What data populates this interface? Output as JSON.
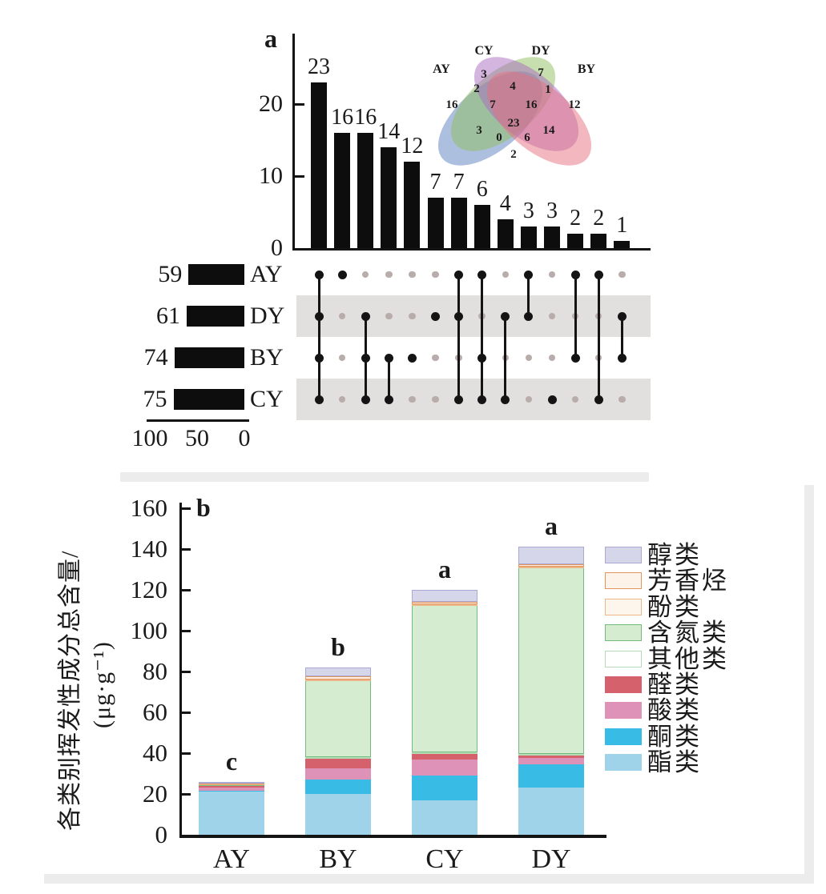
{
  "chart_data": [
    {
      "id": "upset",
      "type": "bar",
      "panel_label": "a",
      "yticks": [
        0,
        10,
        20
      ],
      "set_size_axis_ticks": [
        100,
        50,
        0
      ],
      "row_order": [
        "AY",
        "DY",
        "BY",
        "CY"
      ],
      "set_sizes": {
        "AY": 59,
        "DY": 61,
        "BY": 74,
        "CY": 75
      },
      "intersections": [
        {
          "sets": [
            "AY",
            "DY",
            "BY",
            "CY"
          ],
          "size": 23
        },
        {
          "sets": [
            "AY"
          ],
          "size": 16
        },
        {
          "sets": [
            "DY",
            "BY",
            "CY"
          ],
          "size": 16
        },
        {
          "sets": [
            "BY",
            "CY"
          ],
          "size": 14
        },
        {
          "sets": [
            "BY"
          ],
          "size": 12
        },
        {
          "sets": [
            "DY"
          ],
          "size": 7
        },
        {
          "sets": [
            "AY",
            "DY",
            "CY"
          ],
          "size": 7
        },
        {
          "sets": [
            "AY",
            "BY",
            "CY"
          ],
          "size": 6
        },
        {
          "sets": [
            "DY",
            "CY"
          ],
          "size": 4
        },
        {
          "sets": [
            "AY",
            "DY"
          ],
          "size": 3
        },
        {
          "sets": [
            "CY"
          ],
          "size": 3
        },
        {
          "sets": [
            "AY",
            "BY"
          ],
          "size": 2
        },
        {
          "sets": [
            "AY",
            "CY"
          ],
          "size": 2
        },
        {
          "sets": [
            "DY",
            "BY"
          ],
          "size": 1
        }
      ]
    },
    {
      "id": "venn",
      "type": "venn",
      "sets": [
        "AY",
        "CY",
        "DY",
        "BY"
      ],
      "set_colors": {
        "AY": "#5b7fbe",
        "CY": "#8fbf5e",
        "DY": "#a86bbf",
        "BY": "#e8707f"
      },
      "regions": [
        {
          "sets": [
            "AY"
          ],
          "value": 16
        },
        {
          "sets": [
            "CY"
          ],
          "value": 3
        },
        {
          "sets": [
            "DY"
          ],
          "value": 7
        },
        {
          "sets": [
            "BY"
          ],
          "value": 12
        },
        {
          "sets": [
            "AY",
            "CY"
          ],
          "value": 2
        },
        {
          "sets": [
            "CY",
            "DY"
          ],
          "value": 4
        },
        {
          "sets": [
            "DY",
            "BY"
          ],
          "value": 1
        },
        {
          "sets": [
            "AY",
            "CY",
            "DY"
          ],
          "value": 7
        },
        {
          "sets": [
            "CY",
            "DY",
            "BY"
          ],
          "value": 16
        },
        {
          "sets": [
            "AY",
            "CY",
            "DY",
            "BY"
          ],
          "value": 23
        },
        {
          "sets": [
            "AY",
            "DY"
          ],
          "value": 3
        },
        {
          "sets": [
            "AY",
            "DY",
            "BY"
          ],
          "value": 0
        },
        {
          "sets": [
            "AY",
            "CY",
            "BY"
          ],
          "value": 6
        },
        {
          "sets": [
            "CY",
            "BY"
          ],
          "value": 14
        },
        {
          "sets": [
            "AY",
            "BY"
          ],
          "value": 2
        }
      ]
    },
    {
      "id": "stacked",
      "type": "bar",
      "stacked": true,
      "panel_label": "b",
      "categories": [
        "AY",
        "BY",
        "CY",
        "DY"
      ],
      "sig_letters": [
        "c",
        "b",
        "a",
        "a"
      ],
      "ylabel_line1": "各类别挥发性成分总含量/",
      "ylabel_line2": "(μg·g⁻¹)",
      "ylim": [
        0,
        160
      ],
      "yticks": [
        0,
        20,
        40,
        60,
        80,
        100,
        120,
        140,
        160
      ],
      "series": [
        {
          "name": "酯类",
          "fill": "#9ed3e9",
          "border": "",
          "pattern": "",
          "values": [
            21,
            20,
            17,
            23
          ]
        },
        {
          "name": "酮类",
          "fill": "#38bce6",
          "border": "",
          "pattern": "",
          "values": [
            0.4,
            7,
            12,
            11.5
          ]
        },
        {
          "name": "酸类",
          "fill": "#de92b7",
          "border": "",
          "pattern": "",
          "values": [
            1.8,
            5.5,
            8,
            3
          ]
        },
        {
          "name": "醛类",
          "fill": "#d5616d",
          "border": "",
          "pattern": "",
          "values": [
            1.2,
            5,
            3,
            1.5
          ]
        },
        {
          "name": "其他类",
          "fill": "#ffffff",
          "border": "#b5dcb5",
          "pattern": "",
          "values": [
            0.2,
            0.5,
            0.5,
            0.5
          ]
        },
        {
          "name": "含氮类",
          "fill": "#d5ecd1",
          "border": "#72bd7e",
          "pattern": "grid",
          "values": [
            0.3,
            37.5,
            72,
            91.5
          ]
        },
        {
          "name": "酚类",
          "fill": "#fdf6ec",
          "border": "#ecb687",
          "pattern": "",
          "values": [
            0.2,
            0.5,
            0.5,
            0.5
          ]
        },
        {
          "name": "芳香烃",
          "fill": "#fdf3e8",
          "border": "#e2955e",
          "pattern": "hlines",
          "values": [
            0.4,
            1.5,
            1,
            1
          ]
        },
        {
          "name": "醇类",
          "fill": "#d6d6ea",
          "border": "#a9a9d4",
          "pattern": "",
          "values": [
            0.5,
            4.5,
            6,
            8.5
          ]
        }
      ],
      "legend_order_top_to_bottom": [
        "醇类",
        "芳香烃",
        "酚类",
        "含氮类",
        "其他类",
        "醛类",
        "酸类",
        "酮类",
        "酯类"
      ]
    }
  ]
}
